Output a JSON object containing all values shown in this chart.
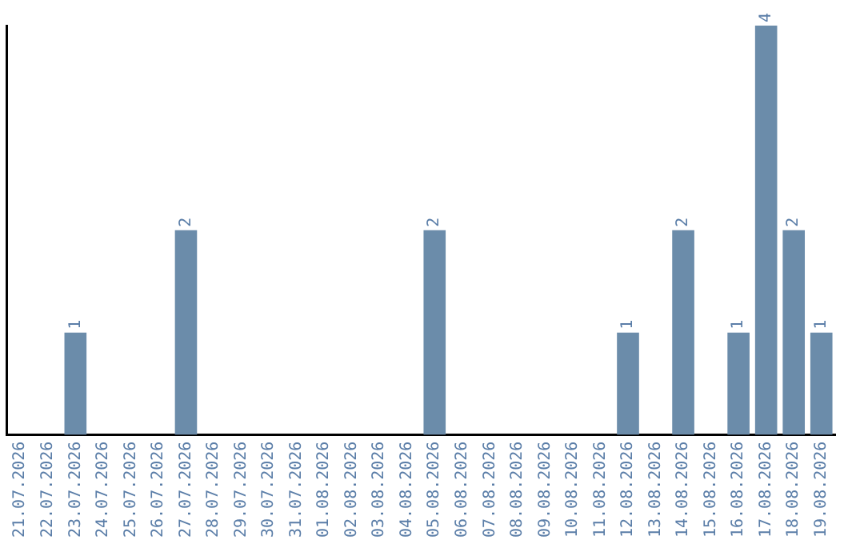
{
  "chart_data": {
    "type": "bar",
    "categories": [
      "21.07.2026",
      "22.07.2026",
      "23.07.2026",
      "24.07.2026",
      "25.07.2026",
      "26.07.2026",
      "27.07.2026",
      "28.07.2026",
      "29.07.2026",
      "30.07.2026",
      "31.07.2026",
      "01.08.2026",
      "02.08.2026",
      "03.08.2026",
      "04.08.2026",
      "05.08.2026",
      "06.08.2026",
      "07.08.2026",
      "08.08.2026",
      "09.08.2026",
      "10.08.2026",
      "11.08.2026",
      "12.08.2026",
      "13.08.2026",
      "14.08.2026",
      "15.08.2026",
      "16.08.2026",
      "17.08.2026",
      "18.08.2026",
      "19.08.2026"
    ],
    "values": [
      0,
      0,
      1,
      0,
      0,
      0,
      2,
      0,
      0,
      0,
      0,
      0,
      0,
      0,
      0,
      2,
      0,
      0,
      0,
      0,
      0,
      0,
      1,
      0,
      2,
      0,
      1,
      4,
      2,
      1
    ],
    "value_labels": [
      null,
      null,
      "1",
      null,
      null,
      null,
      "2",
      null,
      null,
      null,
      null,
      null,
      null,
      null,
      null,
      "2",
      null,
      null,
      null,
      null,
      null,
      null,
      "1",
      null,
      "2",
      null,
      "1",
      "4",
      "2",
      "1"
    ],
    "color": "#6b8caa",
    "grid": false,
    "legend": false,
    "tick_labels": "x"
  }
}
